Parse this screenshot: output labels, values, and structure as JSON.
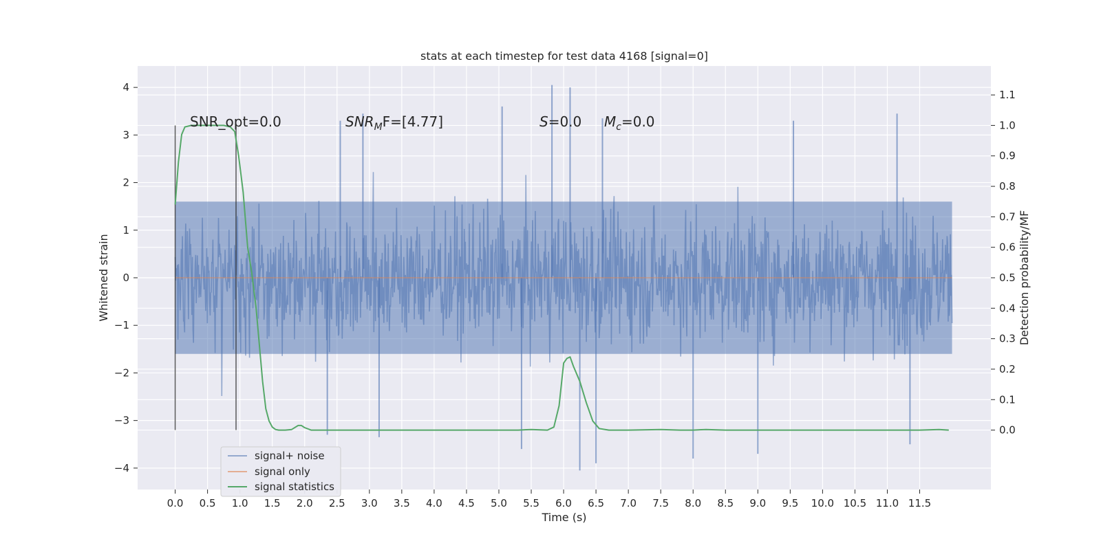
{
  "chart_data": {
    "type": "line",
    "title": "stats at each timestep for test data 4168 [signal=0]",
    "xlabel": "Time (s)",
    "ylabel_left": "Whitened strain",
    "ylabel_right": "Detection probability/MF",
    "xlim": [
      -0.58,
      12.6
    ],
    "ylim_left": [
      -4.45,
      4.45
    ],
    "ylim_right": [
      -0.195,
      1.195
    ],
    "x_ticks": [
      "0.0",
      "0.5",
      "1.0",
      "1.5",
      "2.0",
      "2.5",
      "3.0",
      "3.5",
      "4.0",
      "4.5",
      "5.0",
      "5.5",
      "6.0",
      "6.5",
      "7.0",
      "7.5",
      "8.0",
      "8.5",
      "9.0",
      "9.5",
      "10.0",
      "10.5",
      "11.0",
      "11.5"
    ],
    "y_ticks_left": [
      "−4",
      "−3",
      "−2",
      "−1",
      "0",
      "1",
      "2",
      "3",
      "4"
    ],
    "y_ticks_right": [
      "0.0",
      "0.1",
      "0.2",
      "0.3",
      "0.4",
      "0.5",
      "0.6",
      "0.7",
      "0.8",
      "0.9",
      "1.0",
      "1.1"
    ],
    "grid": true,
    "legend_placement": "lower-left",
    "annotations": {
      "snr_opt": "SNR_opt=0.0",
      "snr_mf_base": "SNR",
      "snr_mf_sub": "M",
      "snr_mf_rest": "F=[4.77]",
      "s_label": "S",
      "s_value": "=0.0",
      "mc_base": "M",
      "mc_sub": "c",
      "mc_value": "=0.0"
    },
    "vertical_lines_x": [
      0.0,
      0.94
    ],
    "vertical_lines_ylim": [
      -3.2,
      3.2
    ],
    "series": [
      {
        "name": "signal+ noise",
        "color": "#4c72b0",
        "x_range": [
          0.0,
          12.0
        ],
        "core_band": [
          -1.6,
          1.6
        ],
        "envelope_typical": [
          -2.4,
          2.4
        ],
        "notable_peaks": [
          {
            "x": 5.82,
            "y": 4.05
          },
          {
            "x": 6.1,
            "y": 4.0
          },
          {
            "x": 5.05,
            "y": 3.6
          },
          {
            "x": 6.25,
            "y": -4.05
          },
          {
            "x": 6.5,
            "y": -3.9
          },
          {
            "x": 5.35,
            "y": -3.6
          },
          {
            "x": 11.35,
            "y": -3.5
          },
          {
            "x": 9.0,
            "y": -3.7
          },
          {
            "x": 8.0,
            "y": -3.8
          },
          {
            "x": 11.15,
            "y": 3.45
          },
          {
            "x": 2.9,
            "y": 3.45
          },
          {
            "x": 3.15,
            "y": -3.35
          },
          {
            "x": 2.55,
            "y": 3.3
          },
          {
            "x": 2.35,
            "y": -3.3
          },
          {
            "x": 6.6,
            "y": 3.35
          },
          {
            "x": 9.55,
            "y": 3.3
          }
        ]
      },
      {
        "name": "signal only",
        "color": "#dd8452",
        "x": [
          0.0,
          12.0
        ],
        "y": [
          0.0,
          0.0
        ]
      },
      {
        "name": "signal statistics",
        "color": "#55a868",
        "axis": "right",
        "x": [
          0.0,
          0.05,
          0.1,
          0.15,
          0.25,
          0.4,
          0.6,
          0.75,
          0.85,
          0.92,
          0.98,
          1.05,
          1.12,
          1.18,
          1.25,
          1.3,
          1.35,
          1.4,
          1.45,
          1.5,
          1.55,
          1.6,
          1.7,
          1.8,
          1.9,
          1.95,
          2.0,
          2.1,
          2.3,
          2.6,
          3.0,
          4.0,
          5.0,
          5.3,
          5.5,
          5.75,
          5.85,
          5.93,
          6.0,
          6.05,
          6.1,
          6.15,
          6.25,
          6.35,
          6.45,
          6.55,
          6.7,
          7.0,
          7.5,
          7.8,
          8.0,
          8.2,
          8.5,
          9.0,
          9.5,
          10.0,
          10.5,
          11.0,
          11.5,
          11.8,
          11.95
        ],
        "y": [
          0.74,
          0.88,
          0.97,
          0.995,
          1.0,
          1.0,
          1.0,
          1.0,
          0.995,
          0.98,
          0.9,
          0.78,
          0.6,
          0.52,
          0.4,
          0.28,
          0.16,
          0.07,
          0.03,
          0.01,
          0.002,
          0.0,
          0.0,
          0.002,
          0.015,
          0.015,
          0.008,
          0.0,
          0.0,
          0.0,
          0.0,
          0.0,
          0.0,
          0.0,
          0.002,
          0.0,
          0.01,
          0.08,
          0.22,
          0.235,
          0.24,
          0.21,
          0.16,
          0.09,
          0.03,
          0.005,
          0.0,
          0.0,
          0.002,
          0.0,
          0.0,
          0.002,
          0.0,
          0.0,
          0.0,
          0.0,
          0.0,
          0.0,
          0.0,
          0.002,
          0.0
        ]
      }
    ]
  }
}
